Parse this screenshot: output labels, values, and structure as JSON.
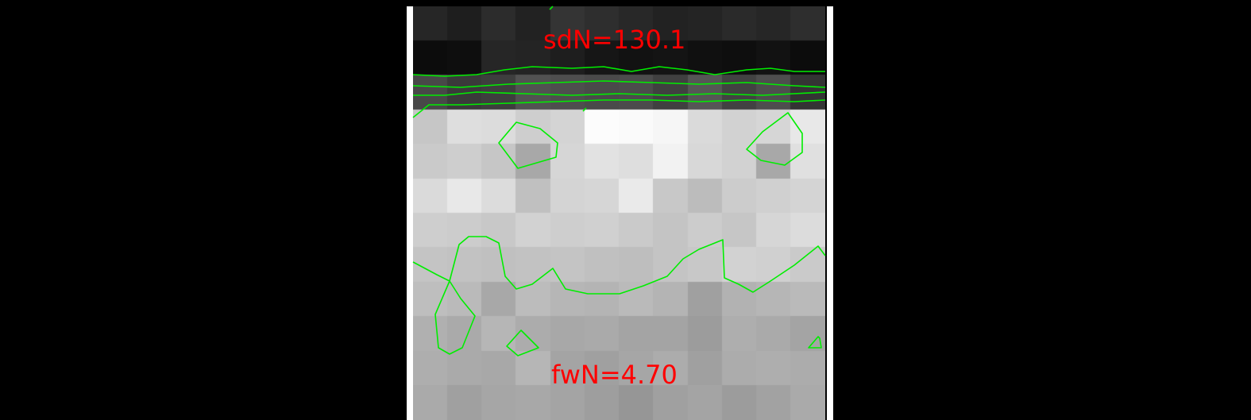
{
  "labels": {
    "top": "sdN=130.1",
    "bottom": "fwN=4.70"
  },
  "colors": {
    "background": "#000000",
    "frame": "#ffffff",
    "label": "#ff0000",
    "contour": "#00ee00"
  },
  "image": {
    "grid_cols": 12,
    "grid_rows": 12,
    "gray_levels": [
      [
        38,
        30,
        44,
        34,
        52,
        46,
        40,
        34,
        36,
        42,
        38,
        46
      ],
      [
        12,
        14,
        38,
        36,
        30,
        22,
        18,
        20,
        16,
        14,
        18,
        12
      ],
      [
        72,
        58,
        62,
        82,
        78,
        74,
        76,
        64,
        86,
        66,
        78,
        52
      ],
      [
        198,
        222,
        220,
        206,
        212,
        252,
        250,
        246,
        218,
        210,
        214,
        232
      ],
      [
        202,
        206,
        198,
        168,
        214,
        226,
        222,
        242,
        216,
        210,
        168,
        224
      ],
      [
        218,
        232,
        220,
        192,
        212,
        214,
        234,
        200,
        188,
        204,
        208,
        212
      ],
      [
        206,
        204,
        200,
        210,
        206,
        208,
        202,
        196,
        204,
        198,
        214,
        220
      ],
      [
        196,
        194,
        192,
        194,
        196,
        192,
        190,
        196,
        200,
        210,
        208,
        202
      ],
      [
        190,
        186,
        168,
        188,
        182,
        180,
        186,
        180,
        160,
        178,
        182,
        186
      ],
      [
        176,
        170,
        182,
        172,
        168,
        170,
        164,
        164,
        156,
        174,
        170,
        164
      ],
      [
        174,
        170,
        168,
        182,
        164,
        160,
        166,
        172,
        160,
        172,
        174,
        172
      ],
      [
        170,
        160,
        166,
        168,
        164,
        158,
        150,
        160,
        164,
        156,
        162,
        170
      ]
    ]
  }
}
